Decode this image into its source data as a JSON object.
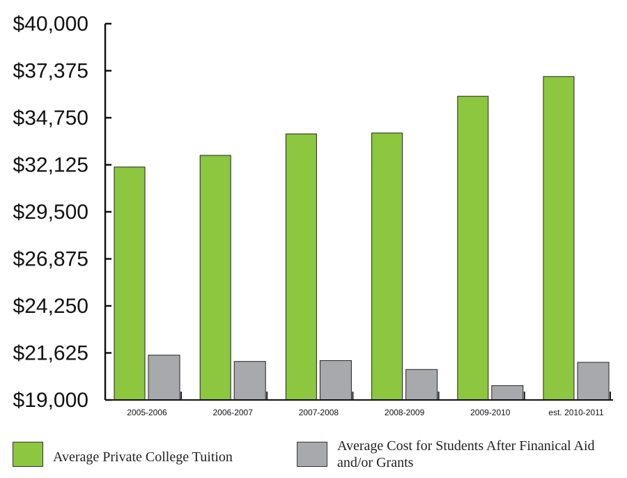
{
  "chart_data": {
    "type": "bar",
    "categories": [
      "2005-2006",
      "2006-2007",
      "2007-2008",
      "2008-2009",
      "2009-2010",
      "est. 2010-2011"
    ],
    "series": [
      {
        "name": "Average Private College Tuition",
        "values": [
          32000,
          32650,
          33850,
          33900,
          35950,
          37050
        ],
        "color": "#8dc63f"
      },
      {
        "name": "Average Cost for Students After Finanical Aid and/or Grants",
        "values": [
          21500,
          21150,
          21200,
          20700,
          19800,
          21100
        ],
        "color": "#a7a9ac"
      }
    ],
    "y_tick_labels": [
      "$19,000",
      "$21,625",
      "$24,250",
      "$26,875",
      "$29,500",
      "$32,125",
      "$34,750",
      "$37,375",
      "$40,000"
    ],
    "ylim": [
      19000,
      40000
    ],
    "legend_position": "bottom",
    "grid": false
  },
  "legend": [
    {
      "label": "Average Private College Tuition",
      "color": "#8dc63f"
    },
    {
      "label": "Average Cost for Students After Finanical Aid and/or Grants",
      "color": "#a7a9ac"
    }
  ]
}
